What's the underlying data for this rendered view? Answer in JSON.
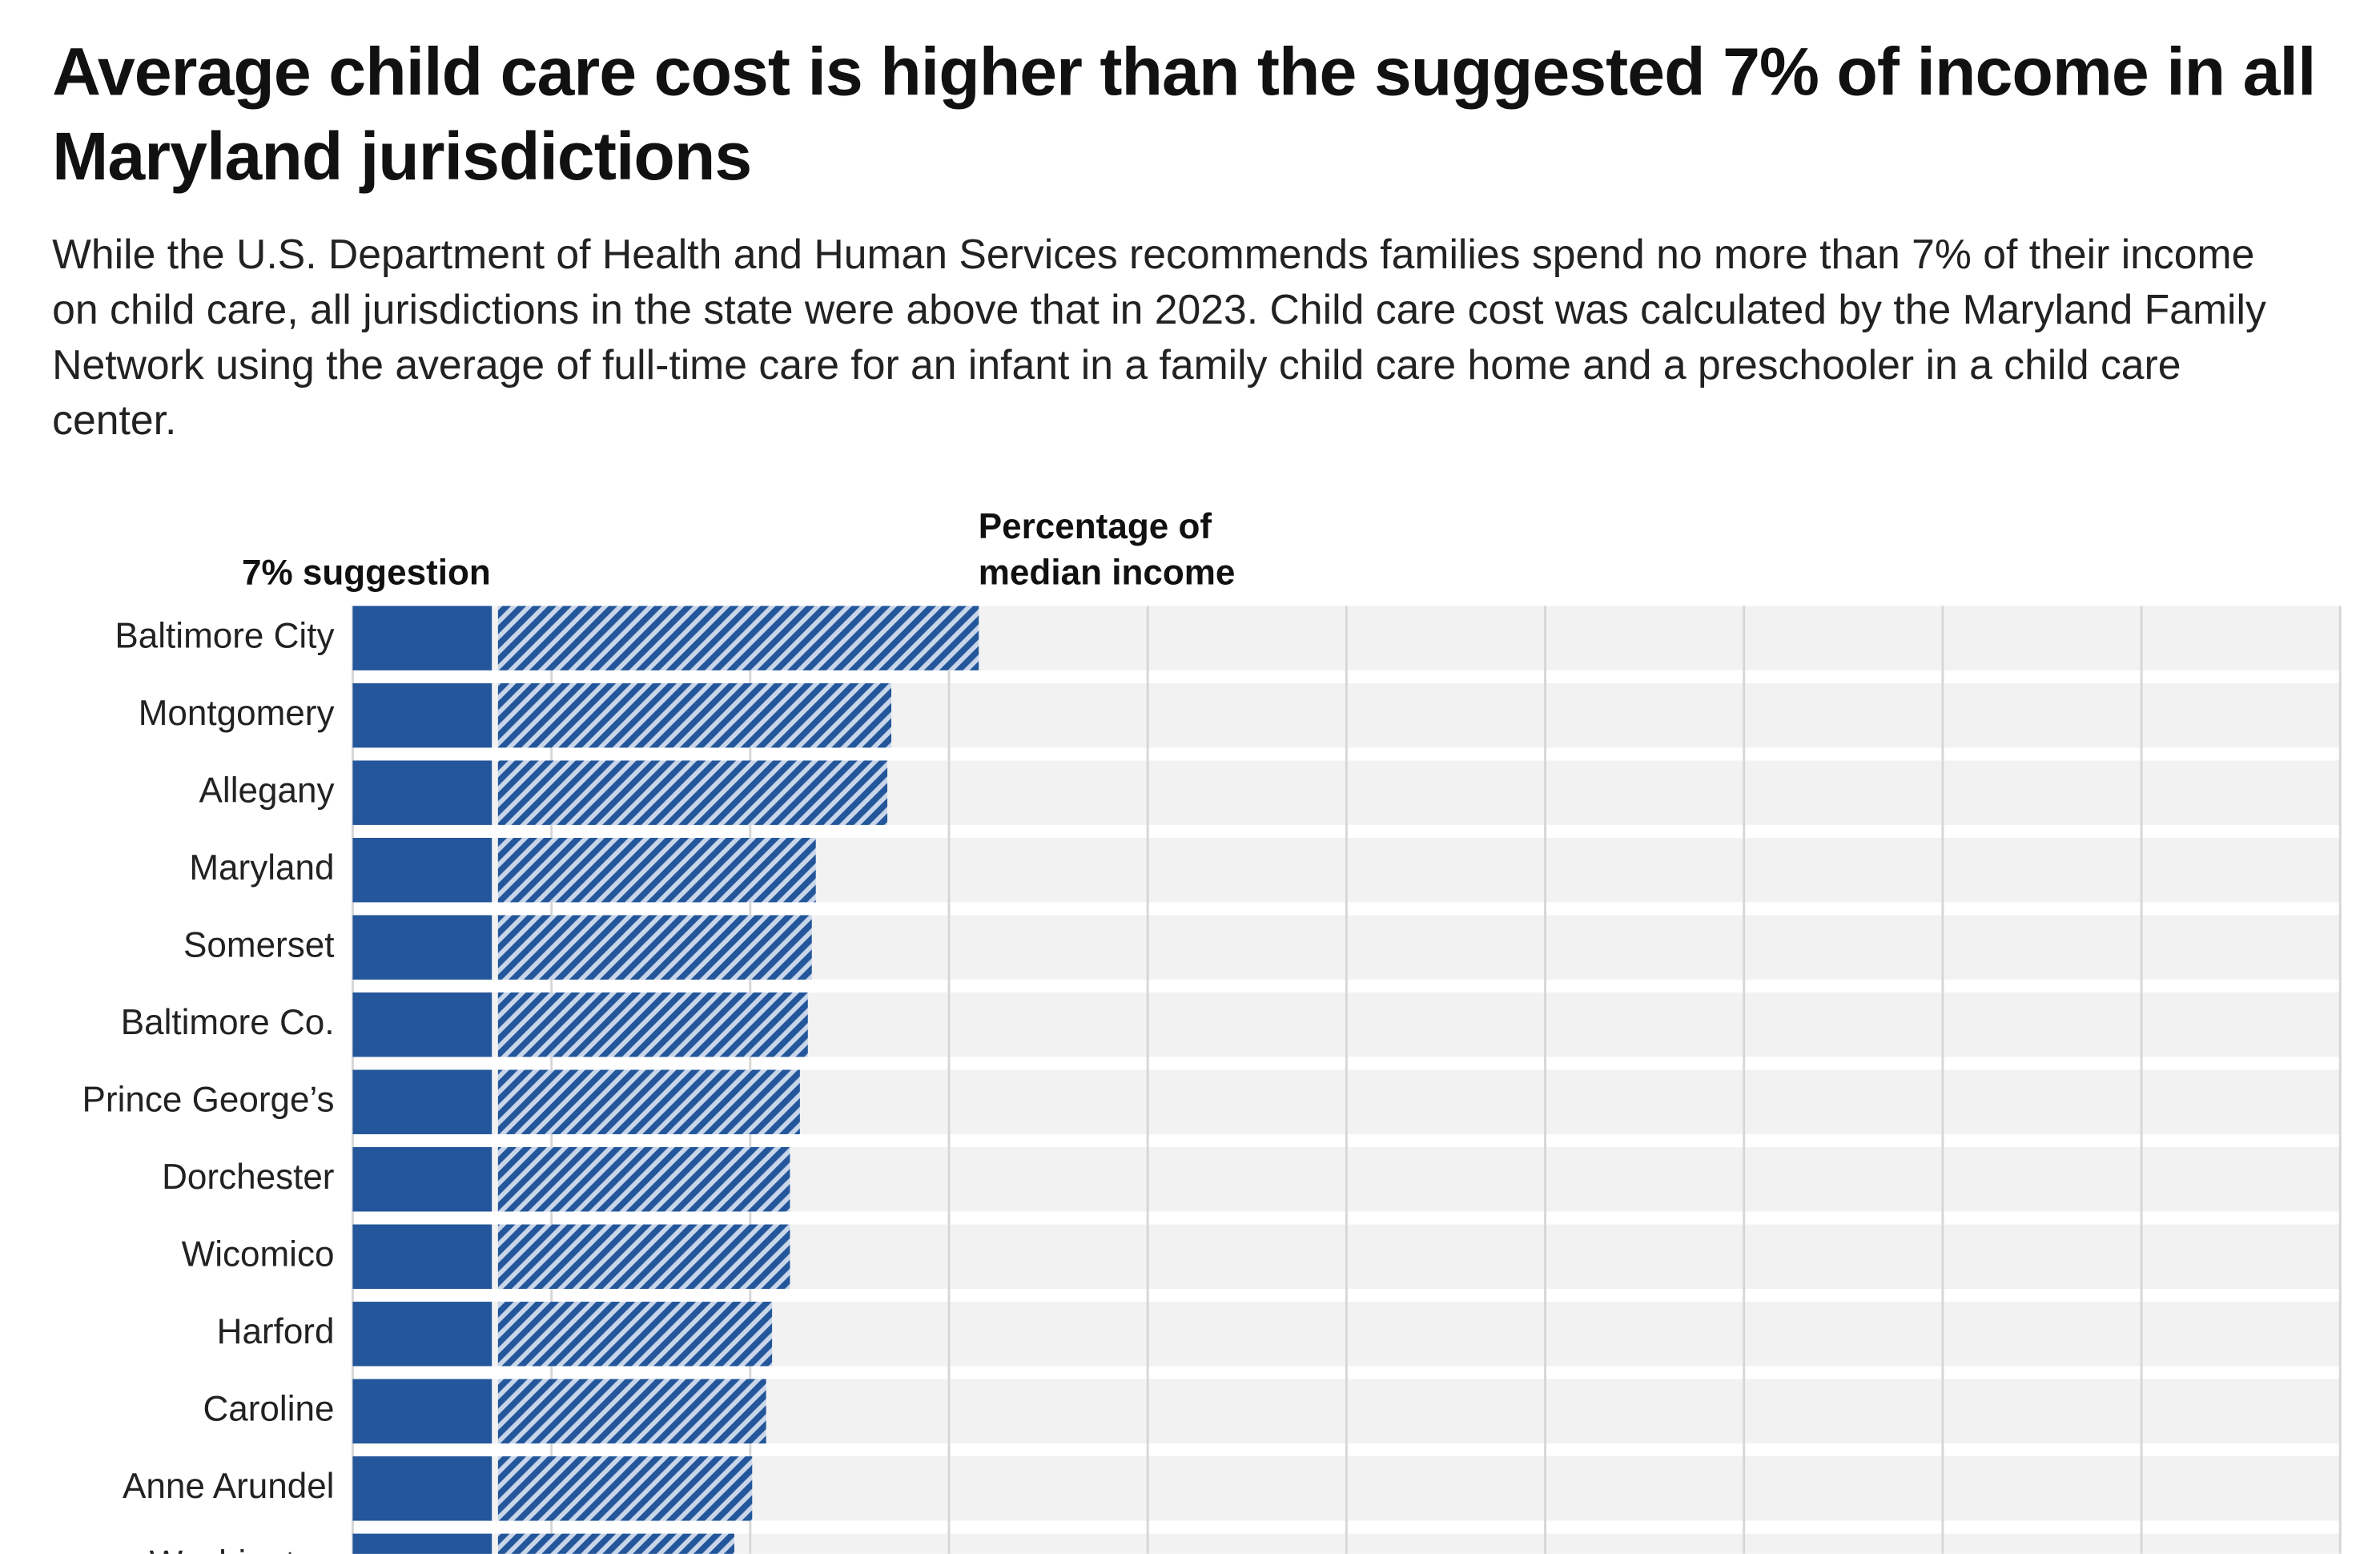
{
  "chart_data": {
    "type": "stacked_bar_horizontal",
    "title": "Average child care cost is higher than the suggested 7% of income in all Maryland jurisdictions",
    "subtitle": "While the U.S. Department of Health and Human Services recommends families spend no more than 7% of their income on child care, all jurisdictions in the state were above that in 2023. Child care cost was calculated by the Maryland Family Network using the average of full-time care for an infant in a family child care home and a preschooler in a child care center.",
    "categories": [
      "Baltimore City",
      "Montgomery",
      "Allegany",
      "Maryland",
      "Somerset",
      "Baltimore Co.",
      "Prince George’s",
      "Dorchester",
      "Wicomico",
      "Harford",
      "Caroline",
      "Anne Arundel",
      "Washington"
    ],
    "series": [
      {
        "name": "7% suggestion",
        "color": "#23569a",
        "values": [
          7,
          7,
          7,
          7,
          7,
          7,
          7,
          7,
          7,
          7,
          7,
          7,
          7
        ]
      },
      {
        "name": "Percentage of median income",
        "color": "#23569a",
        "values": [
          24.5,
          20.1,
          19.9,
          16.3,
          16.1,
          15.9,
          15.5,
          15.0,
          15.0,
          14.1,
          13.8,
          13.1,
          12.2
        ]
      }
    ],
    "xlim": [
      0,
      100
    ],
    "xticks": [
      0,
      10,
      20,
      30,
      40,
      50,
      60,
      70,
      80,
      90,
      100
    ],
    "grid": true
  }
}
